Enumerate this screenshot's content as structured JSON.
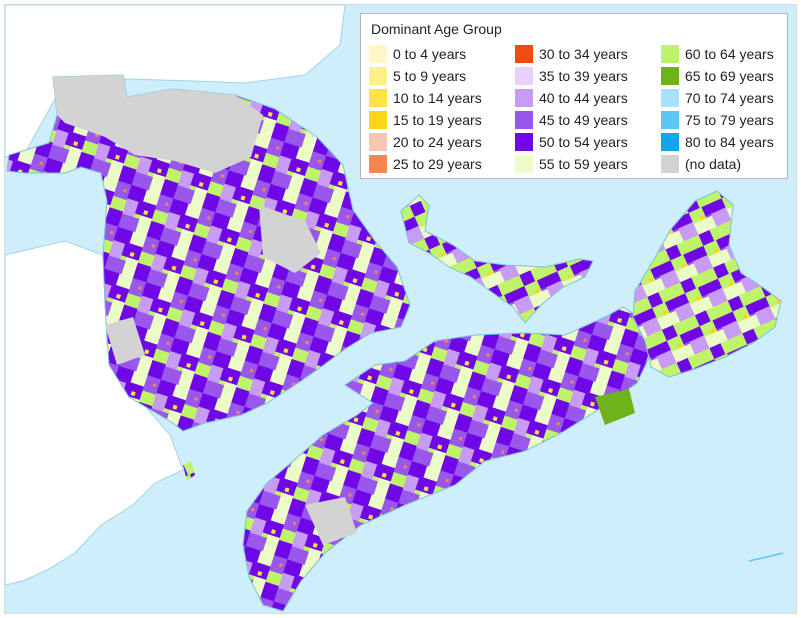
{
  "map": {
    "legend_title": "Dominant Age Group",
    "colors": {
      "water": "#cdeefa",
      "us_land": "#ffffff",
      "coastline": "#7cc0e0"
    },
    "legend": [
      {
        "label": "0 to 4 years",
        "color": "#fff7c4"
      },
      {
        "label": "5 to 9 years",
        "color": "#fdef8c"
      },
      {
        "label": "10 to 14 years",
        "color": "#fde24a"
      },
      {
        "label": "15 to 19 years",
        "color": "#fbd71a"
      },
      {
        "label": "20 to 24 years",
        "color": "#f8c7b2"
      },
      {
        "label": "25 to 29 years",
        "color": "#f58652"
      },
      {
        "label": "30 to 34 years",
        "color": "#f04c12"
      },
      {
        "label": "35 to 39 years",
        "color": "#e8d2fb"
      },
      {
        "label": "40 to 44 years",
        "color": "#c89cf4"
      },
      {
        "label": "45 to 49 years",
        "color": "#9a57ec"
      },
      {
        "label": "50 to 54 years",
        "color": "#6f07e6"
      },
      {
        "label": "55 to 59 years",
        "color": "#ecfcc6"
      },
      {
        "label": "60 to 64 years",
        "color": "#bff36a"
      },
      {
        "label": "65 to 69 years",
        "color": "#6fb31a"
      },
      {
        "label": "70 to 74 years",
        "color": "#a9e3fb"
      },
      {
        "label": "75 to 79 years",
        "color": "#5ac6f6"
      },
      {
        "label": "80 to 84 years",
        "color": "#0ea5f1"
      },
      {
        "label": "(no data)",
        "color": "#d3d3d3"
      }
    ]
  }
}
